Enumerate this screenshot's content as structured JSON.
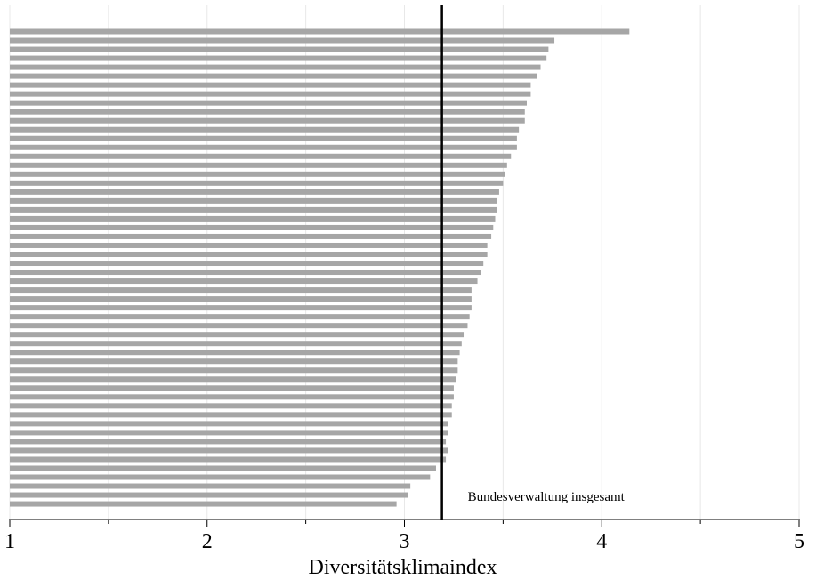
{
  "chart_data": {
    "type": "bar",
    "orientation": "horizontal",
    "xlabel": "Diversitätsklimaindex",
    "ylabel": "",
    "xlim": [
      1,
      5
    ],
    "xticks": [
      "1",
      "2",
      "3",
      "4",
      "5"
    ],
    "minor_ticks": [
      1.5,
      2.5,
      3.5,
      4.5
    ],
    "grid": "vertical",
    "bar_color": "#a6a6a6",
    "reference_line": {
      "value": 3.19,
      "label": "Bundesverwaltung insgesamt",
      "color": "#000000"
    },
    "values": [
      4.14,
      3.76,
      3.73,
      3.72,
      3.69,
      3.67,
      3.64,
      3.64,
      3.62,
      3.61,
      3.61,
      3.58,
      3.57,
      3.57,
      3.54,
      3.52,
      3.51,
      3.5,
      3.48,
      3.47,
      3.47,
      3.46,
      3.45,
      3.44,
      3.42,
      3.42,
      3.4,
      3.39,
      3.37,
      3.34,
      3.34,
      3.34,
      3.33,
      3.32,
      3.3,
      3.29,
      3.28,
      3.27,
      3.27,
      3.26,
      3.25,
      3.25,
      3.24,
      3.24,
      3.22,
      3.22,
      3.21,
      3.22,
      3.21,
      3.16,
      3.13,
      3.03,
      3.02,
      2.96
    ]
  }
}
